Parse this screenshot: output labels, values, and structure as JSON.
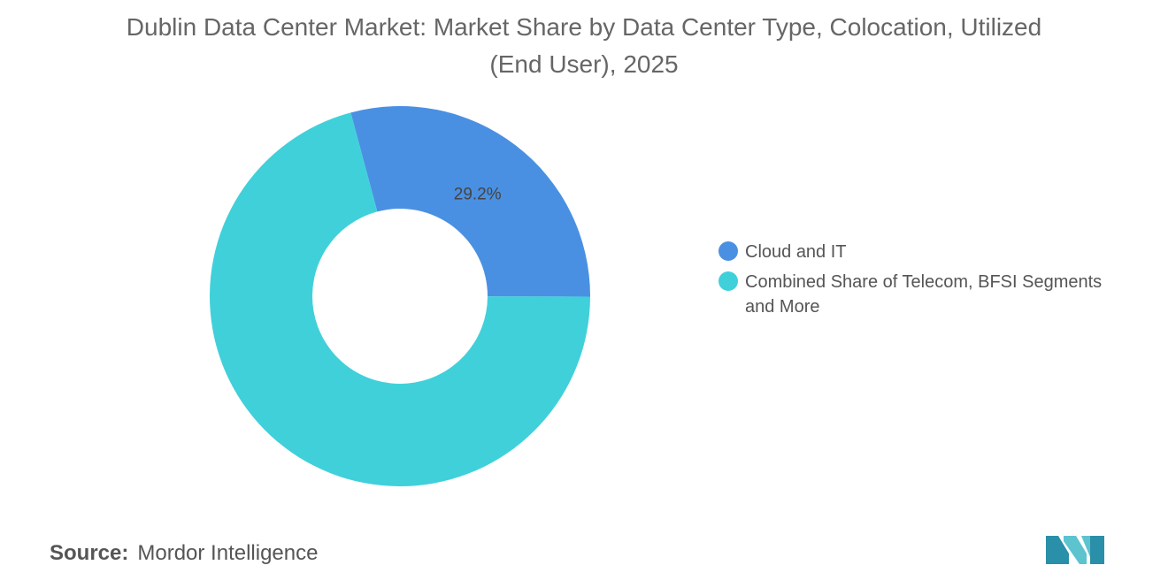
{
  "chart_data": {
    "type": "pie",
    "title": "Dublin Data Center Market: Market Share by Data Center Type, Colocation, Utilized (End User), 2025",
    "categories": [
      "Cloud and IT",
      "Combined Share of Telecom, BFSI Segments and More"
    ],
    "values": [
      29.2,
      70.8
    ],
    "value_labels": [
      "29.2%",
      null
    ],
    "colors": [
      "#4a90e2",
      "#40d0da"
    ],
    "source_label": "Source:",
    "source": "Mordor Intelligence"
  }
}
